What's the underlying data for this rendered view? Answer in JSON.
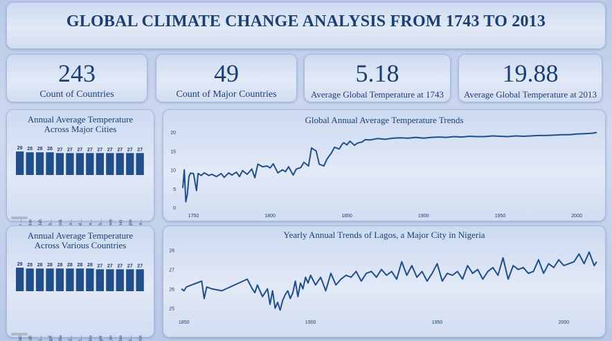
{
  "title": "GLOBAL CLIMATE CHANGE ANALYSIS FROM 1743 TO 2013",
  "kpis": [
    {
      "value": "243",
      "label": "Count of Countries"
    },
    {
      "value": "49",
      "label": "Count of Major Countries"
    },
    {
      "value": "5.18",
      "label": "Average Global Temperature at 1743"
    },
    {
      "value": "19.88",
      "label": "Average Global Temperature at 2013"
    }
  ],
  "colors": {
    "bar": "#1f4e88",
    "line": "#1f4e88",
    "text": "#1c3f72"
  },
  "chart_data": [
    {
      "type": "bar",
      "title": "Annual Average Temperature Across Major Cities",
      "categories": [
        "Umm ...",
        "Madras",
        "Jiddah",
        "Ho Ch...",
        "Bangkok",
        "Moga...",
        "Portal...",
        "Hyder...",
        "Surab...",
        "Rangoon",
        "Bombay",
        "Lagos",
        "Ahma..."
      ],
      "values": [
        29,
        28,
        28,
        28,
        27,
        27,
        27,
        27,
        27,
        27,
        27,
        27,
        27
      ],
      "data_labels": [
        "29",
        "28",
        "28",
        "28",
        "27",
        "27",
        "27",
        "27",
        "27",
        "27",
        "27",
        "27",
        "27"
      ]
    },
    {
      "type": "bar",
      "title": "Annual Average Temperature Across Various Countries",
      "categories": [
        "Djibouti",
        "Mali",
        "Burki...",
        "Senegal",
        "Aruba",
        "United...",
        "Mauri...",
        "Gambia",
        "Niger",
        "Curaçao",
        "Palau",
        "Bonai...",
        "Benin"
      ],
      "values": [
        29,
        28,
        28,
        28,
        28,
        28,
        28,
        28,
        27,
        27,
        27,
        27,
        27
      ],
      "data_labels": [
        "29",
        "28",
        "28",
        "28",
        "28",
        "28",
        "28",
        "28",
        "27",
        "27",
        "27",
        "27",
        "27"
      ]
    },
    {
      "type": "line",
      "title": "Global Annual Average Temperature Trends",
      "xlim": [
        1743,
        2013
      ],
      "ylim": [
        0,
        20
      ],
      "xticks": [
        "1750",
        "1800",
        "1850",
        "1900",
        "1950",
        "2000"
      ],
      "yticks": [
        "0",
        "5",
        "10",
        "15",
        "20"
      ],
      "x": [
        1743,
        1744,
        1745,
        1746,
        1747,
        1748,
        1750,
        1752,
        1753,
        1755,
        1757,
        1760,
        1762,
        1765,
        1768,
        1770,
        1773,
        1775,
        1778,
        1780,
        1782,
        1785,
        1788,
        1790,
        1792,
        1795,
        1798,
        1800,
        1802,
        1805,
        1808,
        1810,
        1812,
        1815,
        1817,
        1820,
        1822,
        1825,
        1827,
        1830,
        1832,
        1835,
        1837,
        1840,
        1842,
        1845,
        1847,
        1848,
        1850,
        1852,
        1855,
        1857,
        1860,
        1862,
        1865,
        1870,
        1875,
        1880,
        1885,
        1890,
        1895,
        1900,
        1905,
        1910,
        1915,
        1920,
        1925,
        1930,
        1935,
        1940,
        1945,
        1950,
        1955,
        1960,
        1965,
        1970,
        1975,
        1980,
        1985,
        1990,
        1995,
        2000,
        2005,
        2010,
        2013
      ],
      "y": [
        5.2,
        10.0,
        1.5,
        3.5,
        8.2,
        9.1,
        9.0,
        4.5,
        9.0,
        8.5,
        9.2,
        8.5,
        8.8,
        8.2,
        9.0,
        8.0,
        9.2,
        8.6,
        9.4,
        8.2,
        9.8,
        8.8,
        10.2,
        7.9,
        11.5,
        10.8,
        11.0,
        10.5,
        11.6,
        9.2,
        10.0,
        9.5,
        10.8,
        8.6,
        10.2,
        10.6,
        12.0,
        11.0,
        15.8,
        15.0,
        11.5,
        11.0,
        12.8,
        14.5,
        16.0,
        15.5,
        16.8,
        17.2,
        16.6,
        17.6,
        16.5,
        17.1,
        17.4,
        18.0,
        17.9,
        18.3,
        18.1,
        18.4,
        18.5,
        18.4,
        18.6,
        18.4,
        18.6,
        18.7,
        18.6,
        18.8,
        18.7,
        18.9,
        18.8,
        18.8,
        19.0,
        18.9,
        18.8,
        19.0,
        18.9,
        19.0,
        19.1,
        19.1,
        19.2,
        19.3,
        19.3,
        19.5,
        19.6,
        19.7,
        19.9
      ]
    },
    {
      "type": "line",
      "title": "Yearly Annual Trends of Lagos, a Major City in Nigeria",
      "xlim": [
        1849,
        2013
      ],
      "ylim": [
        24.7,
        28.2
      ],
      "xticks": [
        "1850",
        "1900",
        "1950",
        "2000"
      ],
      "yticks": [
        "25",
        "26",
        "27",
        "28"
      ],
      "x": [
        1849,
        1850,
        1851,
        1857,
        1858,
        1859,
        1861,
        1865,
        1875,
        1877,
        1878,
        1879,
        1881,
        1883,
        1884,
        1885,
        1886,
        1887,
        1888,
        1889,
        1890,
        1891,
        1892,
        1893,
        1894,
        1895,
        1896,
        1897,
        1898,
        1899,
        1900,
        1902,
        1904,
        1906,
        1908,
        1910,
        1912,
        1914,
        1916,
        1918,
        1920,
        1922,
        1924,
        1926,
        1928,
        1930,
        1932,
        1934,
        1936,
        1938,
        1940,
        1942,
        1944,
        1946,
        1948,
        1950,
        1952,
        1954,
        1956,
        1958,
        1960,
        1962,
        1964,
        1966,
        1968,
        1970,
        1972,
        1974,
        1976,
        1978,
        1980,
        1982,
        1984,
        1986,
        1988,
        1990,
        1992,
        1994,
        1996,
        1998,
        2000,
        2002,
        2004,
        2006,
        2008,
        2010,
        2012,
        2013
      ],
      "y": [
        26.0,
        25.9,
        26.1,
        26.4,
        25.5,
        26.1,
        26.0,
        25.9,
        26.5,
        26.0,
        25.8,
        26.2,
        25.6,
        26.0,
        25.2,
        25.9,
        25.0,
        25.3,
        24.9,
        25.4,
        25.7,
        25.9,
        25.5,
        25.8,
        26.4,
        25.6,
        26.3,
        26.0,
        26.6,
        26.3,
        26.7,
        26.2,
        26.6,
        25.9,
        26.8,
        26.2,
        26.5,
        26.7,
        26.6,
        26.9,
        26.4,
        26.8,
        26.9,
        26.6,
        27.0,
        26.7,
        26.9,
        26.5,
        27.4,
        26.7,
        27.2,
        26.6,
        26.9,
        26.4,
        26.8,
        27.3,
        26.4,
        26.8,
        26.7,
        26.9,
        26.5,
        27.2,
        26.8,
        27.0,
        26.5,
        26.9,
        27.1,
        26.7,
        27.6,
        26.5,
        27.2,
        27.0,
        27.1,
        26.8,
        26.9,
        27.5,
        26.8,
        27.3,
        27.1,
        27.5,
        27.2,
        27.3,
        27.4,
        27.8,
        27.3,
        27.9,
        27.2,
        27.4
      ]
    }
  ]
}
